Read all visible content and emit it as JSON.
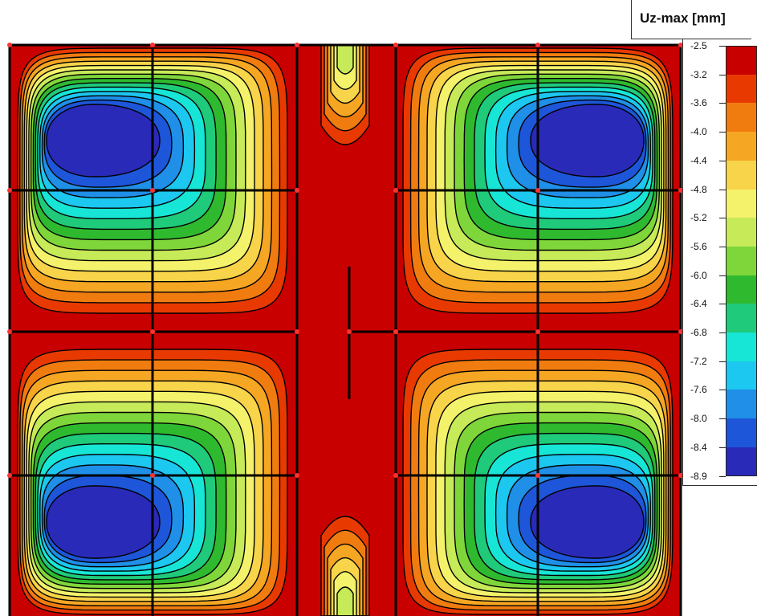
{
  "legend": {
    "title": "Uz-max [mm]",
    "levels": [
      "-2.5",
      "-3.2",
      "-3.6",
      "-4.0",
      "-4.4",
      "-4.8",
      "-5.2",
      "-5.6",
      "-6.0",
      "-6.4",
      "-6.8",
      "-7.2",
      "-7.6",
      "-8.0",
      "-8.4",
      "-8.9"
    ],
    "colors": [
      "#c80000",
      "#e83a00",
      "#f07c10",
      "#f5a623",
      "#f8d44a",
      "#f4f26a",
      "#c6ea58",
      "#7fd63a",
      "#2fb92f",
      "#1fca7a",
      "#17e6d6",
      "#1cc7f0",
      "#1f8fe8",
      "#1d56d8",
      "#2a2ab8"
    ]
  },
  "background_color": "#c80000",
  "contour_line_color": "#000000",
  "grid_node_color": "#ff3333"
}
